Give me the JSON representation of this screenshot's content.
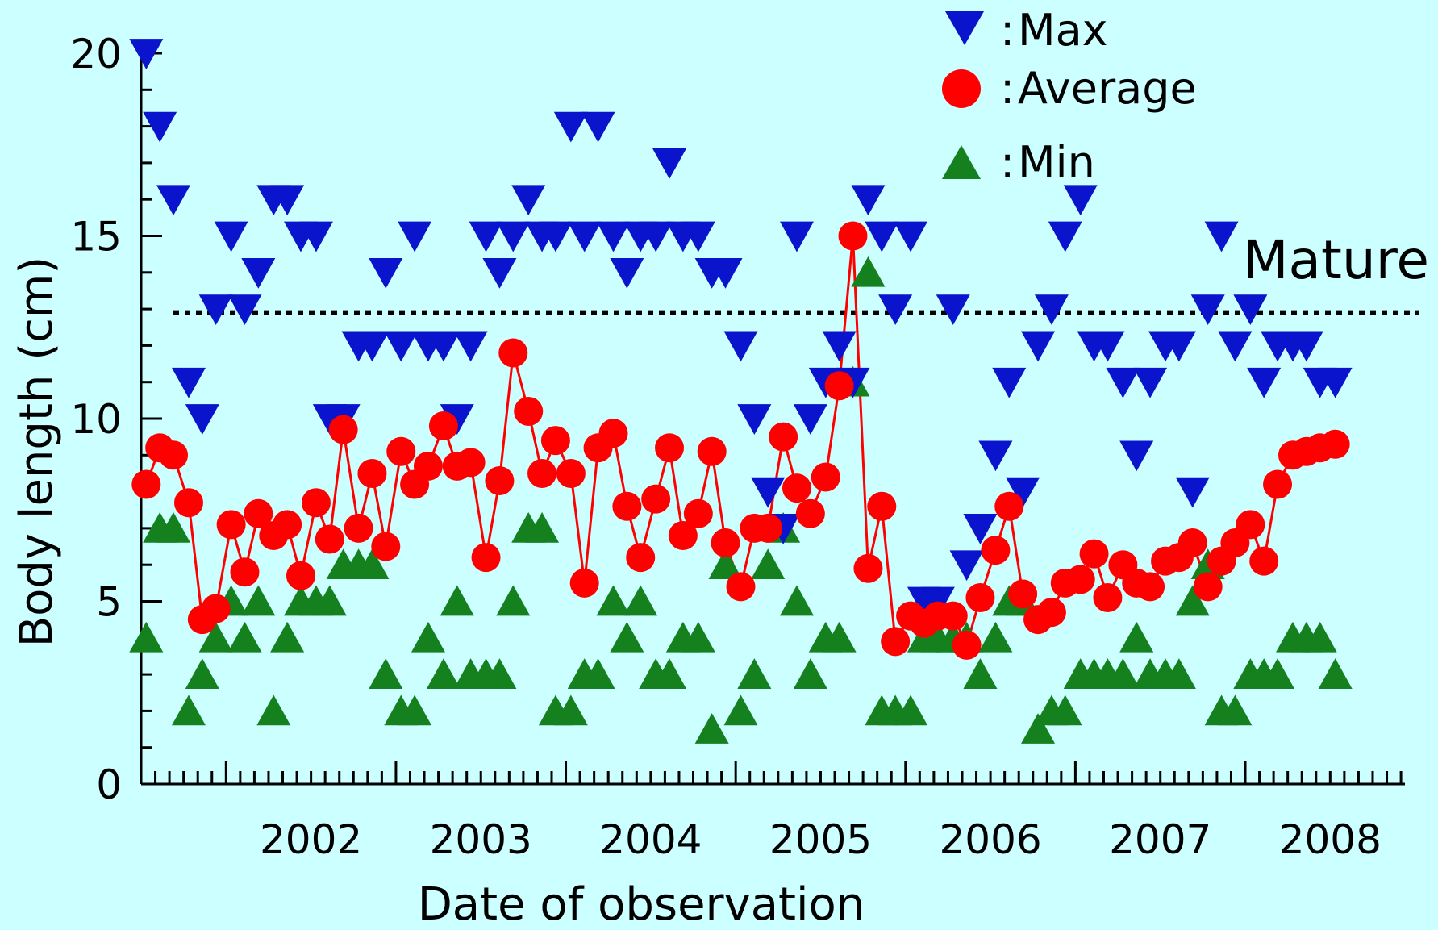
{
  "chart_data": {
    "type": "scatter",
    "title": "",
    "xlabel": "Date of observation",
    "ylabel": "Body length (cm)",
    "ylim": [
      0,
      20
    ],
    "yticks": [
      0,
      5,
      10,
      15,
      20
    ],
    "xlim": [
      2001.5,
      2008.94
    ],
    "year_labels": [
      "2002",
      "2003",
      "2004",
      "2005",
      "2006",
      "2007",
      "2008"
    ],
    "legend_position": "top-right",
    "threshold": {
      "label": "Mature",
      "value": 12.9,
      "style": "dotted"
    },
    "colors": {
      "max": "#0a14cc",
      "average": "#ff0000",
      "min": "#14801e",
      "line": "#ff0000"
    },
    "x": [
      2001.53,
      2001.61,
      2001.69,
      2001.78,
      2001.86,
      2001.94,
      2002.03,
      2002.11,
      2002.19,
      2002.28,
      2002.36,
      2002.44,
      2002.53,
      2002.61,
      2002.69,
      2002.78,
      2002.86,
      2002.94,
      2003.03,
      2003.11,
      2003.19,
      2003.28,
      2003.36,
      2003.44,
      2003.53,
      2003.61,
      2003.69,
      2003.78,
      2003.86,
      2003.94,
      2004.03,
      2004.11,
      2004.19,
      2004.28,
      2004.36,
      2004.44,
      2004.53,
      2004.61,
      2004.69,
      2004.78,
      2004.86,
      2004.94,
      2005.03,
      2005.11,
      2005.19,
      2005.28,
      2005.36,
      2005.44,
      2005.53,
      2005.61,
      2005.69,
      2005.78,
      2005.86,
      2005.94,
      2006.03,
      2006.11,
      2006.19,
      2006.28,
      2006.36,
      2006.44,
      2006.53,
      2006.61,
      2006.69,
      2006.78,
      2006.86,
      2006.94,
      2007.03,
      2007.11,
      2007.19,
      2007.28,
      2007.36,
      2007.44,
      2007.53,
      2007.61,
      2007.69,
      2007.78,
      2007.86,
      2007.94,
      2008.03,
      2008.11,
      2008.19,
      2008.28,
      2008.36,
      2008.44,
      2008.53
    ],
    "series": [
      {
        "name": "Max",
        "marker": "triangle-down",
        "values": [
          20,
          18,
          16,
          11,
          10,
          13,
          15,
          13,
          14,
          16,
          16,
          15,
          15,
          10,
          10,
          12,
          12,
          14,
          12,
          15,
          12,
          12,
          10,
          12,
          15,
          14,
          15,
          16,
          15,
          15,
          18,
          15,
          18,
          15,
          14,
          15,
          15,
          17,
          15,
          15,
          14,
          14,
          12,
          10,
          8,
          7,
          15,
          10,
          11,
          12,
          11,
          16,
          15,
          13,
          15,
          5,
          5,
          13,
          6,
          7,
          9,
          11,
          8,
          12,
          13,
          15,
          16,
          12,
          12,
          11,
          9,
          11,
          12,
          12,
          8,
          13,
          15,
          12,
          13,
          11,
          12,
          12,
          12,
          11,
          11
        ]
      },
      {
        "name": "Average",
        "marker": "circle",
        "values": [
          8.2,
          9.2,
          9.0,
          7.7,
          4.5,
          4.8,
          7.1,
          5.8,
          7.4,
          6.8,
          7.1,
          5.7,
          7.7,
          6.7,
          9.7,
          7.0,
          8.5,
          6.5,
          9.1,
          8.2,
          8.7,
          9.8,
          8.7,
          8.8,
          6.2,
          8.3,
          11.8,
          10.2,
          8.5,
          9.4,
          8.5,
          5.5,
          9.2,
          9.6,
          7.6,
          6.2,
          7.8,
          9.2,
          6.8,
          7.4,
          9.1,
          6.6,
          5.4,
          7.0,
          7.0,
          9.5,
          8.1,
          7.4,
          8.4,
          10.9,
          15.0,
          5.9,
          7.6,
          3.9,
          4.6,
          4.4,
          4.6,
          4.6,
          3.8,
          5.1,
          6.4,
          7.6,
          5.2,
          4.5,
          4.7,
          5.5,
          5.6,
          6.3,
          5.1,
          6.0,
          5.5,
          5.4,
          6.1,
          6.2,
          6.6,
          5.4,
          6.1,
          6.6,
          7.1,
          6.1,
          8.2,
          9.0,
          9.1,
          9.2,
          9.3
        ]
      },
      {
        "name": "Min",
        "marker": "triangle-up",
        "values": [
          4,
          7,
          7,
          2,
          3,
          4,
          5,
          4,
          5,
          2,
          4,
          5,
          5,
          5,
          6,
          6,
          6,
          3,
          2,
          2,
          4,
          3,
          5,
          3,
          3,
          3,
          5,
          7,
          7,
          2,
          2,
          3,
          3,
          5,
          4,
          5,
          3,
          3,
          4,
          4,
          1.5,
          6,
          2,
          3,
          6,
          7,
          5,
          3,
          4,
          4,
          11,
          14,
          2,
          2,
          2,
          4,
          4,
          4,
          4,
          3,
          4,
          5,
          5,
          1.5,
          2,
          2,
          3,
          3,
          3,
          3,
          4,
          3,
          3,
          3,
          5,
          6,
          2,
          2,
          3,
          3,
          3,
          4,
          4,
          4,
          3
        ]
      }
    ]
  }
}
